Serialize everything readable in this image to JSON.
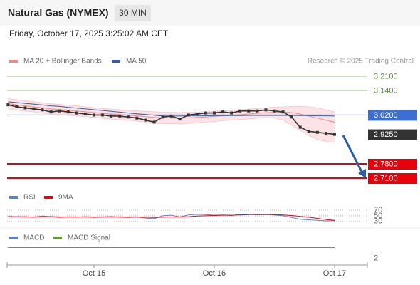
{
  "header": {
    "title": "Natural Gas (NYMEX)",
    "interval": "30 MIN",
    "timestamp": "Friday, October 17, 2025 3:25:02 AM CET",
    "credit": "Research © 2025 Trading Central"
  },
  "chart_data": [
    {
      "type": "line",
      "categories": [
        null,
        null,
        null,
        null,
        null,
        null,
        null,
        null,
        null,
        null,
        "Oct 15",
        null,
        null,
        null,
        null,
        null,
        null,
        null,
        null,
        null,
        null,
        null,
        null,
        null,
        "Oct 16",
        null,
        null,
        null,
        null,
        null,
        null,
        null,
        null,
        null,
        null,
        null,
        null,
        null,
        "Oct 17"
      ],
      "ylim": [
        2.668,
        3.305
      ],
      "series": [
        {
          "name": "MA 20 + Bollinger Bands",
          "color": "#f08a8a",
          "band_color": "#fde3e6",
          "values": [
            3.075,
            3.07,
            3.065,
            3.06,
            3.055,
            3.05,
            3.047,
            3.043,
            3.04,
            3.036,
            3.032,
            3.028,
            3.025,
            3.022,
            3.019,
            3.016,
            3.012,
            3.008,
            3.006,
            3.005,
            3.004,
            3.006,
            3.008,
            3.01,
            3.013,
            3.016,
            3.019,
            3.022,
            3.025,
            3.028,
            3.031,
            3.033,
            3.034,
            3.032,
            3.025,
            3.015,
            3.005,
            2.995,
            2.985
          ],
          "upper": [
            3.1,
            3.095,
            3.09,
            3.085,
            3.08,
            3.075,
            3.072,
            3.068,
            3.065,
            3.06,
            3.056,
            3.052,
            3.049,
            3.046,
            3.043,
            3.04,
            3.038,
            3.036,
            3.034,
            3.033,
            3.032,
            3.033,
            3.034,
            3.036,
            3.038,
            3.04,
            3.043,
            3.046,
            3.049,
            3.052,
            3.055,
            3.058,
            3.06,
            3.062,
            3.062,
            3.06,
            3.055,
            3.045,
            3.035
          ],
          "lower": [
            3.05,
            3.045,
            3.04,
            3.035,
            3.03,
            3.025,
            3.022,
            3.018,
            3.015,
            3.012,
            3.008,
            3.004,
            3.0,
            2.997,
            2.994,
            2.99,
            2.985,
            2.98,
            2.978,
            2.977,
            2.976,
            2.979,
            2.982,
            2.985,
            2.988,
            2.992,
            2.995,
            2.998,
            3.001,
            3.004,
            3.007,
            3.005,
            2.995,
            2.97,
            2.945,
            2.92,
            2.9,
            2.89,
            2.885
          ]
        },
        {
          "name": "MA 50",
          "color": "#2f5f9e",
          "values": [
            3.085,
            3.081,
            3.077,
            3.073,
            3.069,
            3.065,
            3.062,
            3.058,
            3.054,
            3.05,
            3.046,
            3.042,
            3.038,
            3.034,
            3.03,
            3.026,
            3.023,
            3.019,
            3.015,
            3.015,
            3.015,
            3.016,
            3.016,
            3.016,
            3.017,
            3.017,
            3.017,
            3.017,
            3.018,
            3.018,
            3.018,
            3.018,
            3.018,
            3.018,
            3.017,
            3.017,
            3.016,
            3.016,
            3.015
          ]
        },
        {
          "color": "#333333",
          "values": [
            3.07,
            3.06,
            3.055,
            3.05,
            3.045,
            3.035,
            3.04,
            3.035,
            3.03,
            3.025,
            3.02,
            3.02,
            3.015,
            3.015,
            3.01,
            3.005,
            2.995,
            2.985,
            3.01,
            3.015,
            3.0,
            3.02,
            3.025,
            3.03,
            3.03,
            3.035,
            3.03,
            3.04,
            3.04,
            3.04,
            3.045,
            3.04,
            3.035,
            3.01,
            2.96,
            2.94,
            2.935,
            2.93,
            2.925
          ]
        }
      ],
      "levels": [
        {
          "value": 3.21,
          "label": "3.2100",
          "color": "#9fd37e",
          "text_color": "#5b8f2e",
          "boxed": false,
          "line": true
        },
        {
          "value": 3.14,
          "label": "3.1400",
          "color": "#9fd37e",
          "text_color": "#5b8f2e",
          "boxed": false,
          "line": true
        },
        {
          "value": 3.02,
          "label": "3.0200",
          "color": "#3b6fd4",
          "text_color": "#ffffff",
          "boxed": true,
          "line": true
        },
        {
          "value": 2.925,
          "label": "2.9250",
          "color": "#333333",
          "text_color": "#ffffff",
          "boxed": true,
          "line": false
        },
        {
          "value": 2.78,
          "label": "2.7800",
          "color": "#e8000b",
          "text_color": "#ffffff",
          "boxed": true,
          "line": true
        },
        {
          "value": 2.71,
          "label": "2.7100",
          "color": "#e8000b",
          "text_color": "#ffffff",
          "boxed": true,
          "line": true
        }
      ]
    },
    {
      "type": "line",
      "ylim": [
        12,
        95
      ],
      "yticks": [
        70,
        50,
        30
      ],
      "grid": true,
      "series": [
        {
          "name": "RSI",
          "color": "#5b7fd6",
          "values": [
            48,
            46,
            47,
            45,
            49,
            47,
            44,
            46,
            45,
            47,
            44,
            46,
            48,
            45,
            44,
            46,
            42,
            40,
            50,
            52,
            46,
            53,
            55,
            54,
            52,
            53,
            51,
            55,
            56,
            54,
            55,
            53,
            50,
            44,
            38,
            36,
            34,
            32,
            33
          ]
        },
        {
          "name": "9MA",
          "color": "#e8000b",
          "values": [
            47,
            47,
            46,
            46,
            47,
            47,
            46,
            46,
            46,
            46,
            45,
            45,
            46,
            46,
            45,
            45,
            45,
            44,
            45,
            46,
            46,
            47,
            49,
            50,
            51,
            52,
            52,
            53,
            54,
            54,
            54,
            54,
            53,
            51,
            48,
            45,
            41,
            37,
            34
          ]
        }
      ]
    },
    {
      "type": "line",
      "ylim": [
        1.5,
        4.5
      ],
      "yticks": [
        2
      ],
      "grid": false,
      "series": [
        {
          "name": "MACD",
          "color": "#5b7fd6",
          "values": [
            3,
            3,
            3,
            3,
            3,
            3,
            3,
            3,
            3,
            3,
            3,
            3,
            3,
            3,
            3,
            3,
            3,
            3,
            3,
            3,
            3,
            3,
            3,
            3,
            3,
            3,
            3,
            3,
            3,
            3,
            3,
            3,
            3,
            3,
            3,
            3,
            3,
            3,
            3
          ]
        },
        {
          "name": "MACD Signal",
          "color": "#5aa02c",
          "values": [
            3,
            3,
            3,
            3,
            3,
            3,
            3,
            3,
            3,
            3,
            3,
            3,
            3,
            3,
            3,
            3,
            3,
            3,
            3,
            3,
            3,
            3,
            3,
            3,
            3,
            3,
            3,
            3,
            3,
            3,
            3,
            3,
            3,
            3,
            3,
            3,
            3,
            3,
            3
          ]
        }
      ]
    }
  ]
}
